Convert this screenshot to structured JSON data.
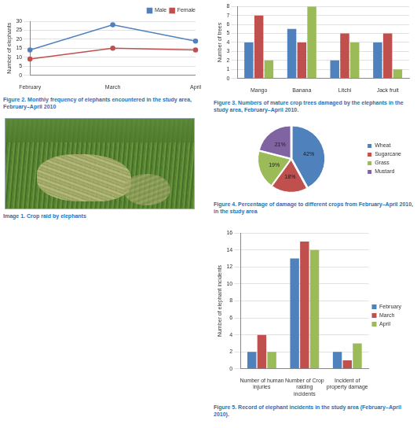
{
  "chart_data": [
    {
      "type": "line",
      "caption": "Figure 2. Monthly frequency of elephants encountered in the study area, February–April 2010",
      "y_label": "Number of elephants",
      "categories": [
        "February",
        "March",
        "April"
      ],
      "series": [
        {
          "name": "Male",
          "color": "#4f81bd",
          "marker": "circle",
          "values": [
            14,
            28,
            19
          ]
        },
        {
          "name": "Female",
          "color": "#c0504d",
          "marker": "circle",
          "values": [
            9,
            15,
            14
          ]
        }
      ],
      "ylim": [
        0,
        30
      ],
      "yticks": [
        0,
        5,
        10,
        15,
        20,
        25,
        30
      ],
      "grid": true,
      "legend": "top right"
    },
    {
      "type": "bar",
      "caption": "Figure 3. Numbers of mature crop trees damaged by the elephants in the study area, February–April 2010.",
      "y_label": "Number of trees",
      "categories": [
        "Mango",
        "Banana",
        "Litchi",
        "Jack fruit"
      ],
      "series": [
        {
          "color": "#4f81bd",
          "values": [
            4,
            5.5,
            2,
            4
          ]
        },
        {
          "color": "#c0504d",
          "values": [
            7,
            4,
            5,
            5
          ]
        },
        {
          "color": "#9bbb59",
          "values": [
            2,
            8,
            4,
            1
          ]
        }
      ],
      "ylim": [
        0,
        8
      ],
      "yticks": [
        0,
        1,
        2,
        3,
        4,
        5,
        6,
        7,
        8
      ],
      "grid": true
    },
    {
      "type": "pie",
      "caption": "Figure 4. Percentage of damage to different crops from February–April 2010, in the study area",
      "categories": [
        "Wheat",
        "Sugarcane",
        "Grass",
        "Mustard"
      ],
      "values": [
        42,
        18,
        19,
        21
      ],
      "value_labels": [
        "42%",
        "18%",
        "19%",
        "21%"
      ],
      "colors": [
        "#4f81bd",
        "#c0504d",
        "#9bbb59",
        "#8064a2"
      ],
      "data_labels": true,
      "legend": "right"
    },
    {
      "type": "bar",
      "caption": "Figure 5. Record of elephant incidents in the study area (February–April 2010).",
      "y_label": "Number of elephant incidents",
      "categories": [
        "Number of human injuries",
        "Number of Crop raiding incidents",
        "Incident of property damage"
      ],
      "series": [
        {
          "name": "February",
          "color": "#4f81bd",
          "values": [
            2,
            13,
            2
          ]
        },
        {
          "name": "March",
          "color": "#c0504d",
          "values": [
            4,
            15,
            1
          ]
        },
        {
          "name": "April",
          "color": "#9bbb59",
          "values": [
            2,
            14,
            3
          ]
        }
      ],
      "ylim": [
        0,
        16
      ],
      "yticks": [
        0,
        2,
        4,
        6,
        8,
        10,
        12,
        14,
        16
      ],
      "grid": true,
      "legend": "right"
    }
  ],
  "image": {
    "caption": "Image 1. Crop raid by elephants"
  }
}
